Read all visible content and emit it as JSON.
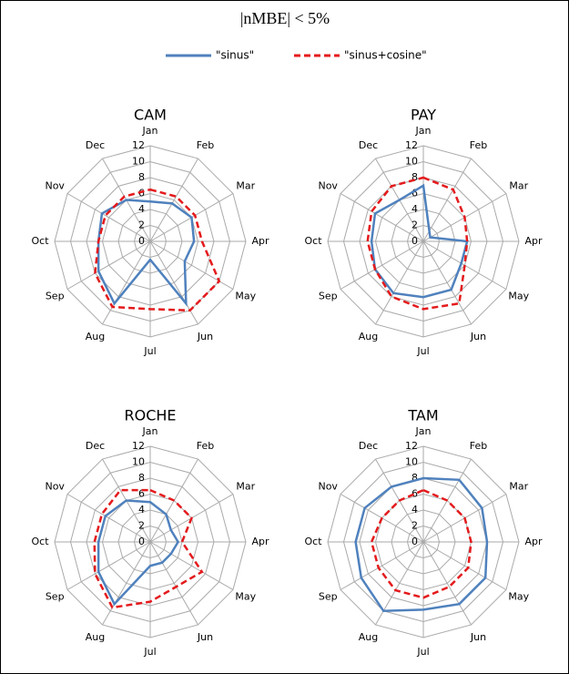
{
  "title": "|nMBE| < 5%",
  "chart_data": [
    {
      "type": "radar",
      "title": "CAM",
      "categories": [
        "Jan",
        "Feb",
        "Mar",
        "Apr",
        "May",
        "Jun",
        "Jul",
        "Aug",
        "Sep",
        "Oct",
        "Nov",
        "Dec"
      ],
      "ylim": [
        0,
        12
      ],
      "yticks": [
        0,
        2,
        4,
        6,
        8,
        10,
        12
      ],
      "series": [
        {
          "name": "\"sinus\"",
          "color": "#4f81bd",
          "line_style": "solid",
          "values": [
            5,
            5.5,
            6,
            5.5,
            5,
            9,
            2.3,
            9,
            7.5,
            6.5,
            7,
            6
          ]
        },
        {
          "name": "\"sinus+cosine\"",
          "color": "#e41a1c",
          "line_style": "dashed",
          "values": [
            6.5,
            6.5,
            6.5,
            6.5,
            10,
            10,
            8.5,
            9.5,
            8,
            6.5,
            6.5,
            6.5
          ]
        }
      ]
    },
    {
      "type": "radar",
      "title": "PAY",
      "categories": [
        "Jan",
        "Feb",
        "Mar",
        "Apr",
        "May",
        "Jun",
        "Jul",
        "Aug",
        "Sep",
        "Oct",
        "Nov",
        "Dec"
      ],
      "ylim": [
        0,
        12
      ],
      "yticks": [
        0,
        2,
        4,
        6,
        8,
        10,
        12
      ],
      "series": [
        {
          "color": "#4f81bd",
          "line_style": "solid",
          "values": [
            7,
            1.5,
            1,
            5.5,
            5.5,
            7,
            7,
            7.5,
            7,
            6.5,
            7,
            6
          ]
        },
        {
          "color": "#e41a1c",
          "line_style": "dashed",
          "values": [
            8,
            7.5,
            6,
            5.5,
            6,
            9,
            8.5,
            8,
            7,
            7,
            7.5,
            8
          ]
        }
      ]
    },
    {
      "type": "radar",
      "title": "ROCHE",
      "categories": [
        "Jan",
        "Feb",
        "Mar",
        "Apr",
        "May",
        "Jun",
        "Jul",
        "Aug",
        "Sep",
        "Oct",
        "Nov",
        "Dec"
      ],
      "ylim": [
        0,
        12
      ],
      "yticks": [
        0,
        2,
        4,
        6,
        8,
        10,
        12
      ],
      "series": [
        {
          "color": "#4f81bd",
          "line_style": "solid",
          "values": [
            5,
            4,
            3,
            3.5,
            3,
            3,
            3,
            9,
            7.5,
            6.5,
            6.5,
            6
          ]
        },
        {
          "color": "#e41a1c",
          "line_style": "dashed",
          "values": [
            6.5,
            6,
            6,
            4,
            7.5,
            6.5,
            7.5,
            9.5,
            8,
            7,
            7,
            7.5
          ]
        }
      ]
    },
    {
      "type": "radar",
      "title": "TAM",
      "categories": [
        "Jan",
        "Feb",
        "Mar",
        "Apr",
        "May",
        "Jun",
        "Jul",
        "Aug",
        "Sep",
        "Oct",
        "Nov",
        "Dec"
      ],
      "ylim": [
        0,
        12
      ],
      "yticks": [
        0,
        2,
        4,
        6,
        8,
        10,
        12
      ],
      "series": [
        {
          "color": "#4f81bd",
          "line_style": "solid",
          "values": [
            8,
            9,
            8.5,
            8,
            9,
            9,
            8.5,
            10,
            9,
            8.5,
            8.5,
            8
          ]
        },
        {
          "color": "#e41a1c",
          "line_style": "dashed",
          "values": [
            6.5,
            6,
            6,
            6,
            6.5,
            6.5,
            7,
            7,
            6.5,
            6.5,
            6,
            6
          ]
        }
      ]
    }
  ]
}
